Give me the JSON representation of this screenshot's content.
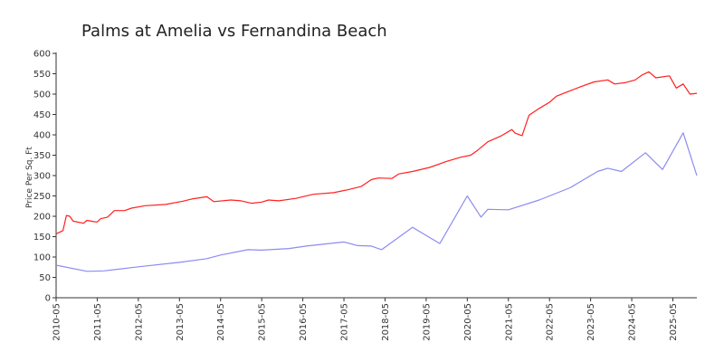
{
  "chart_data": {
    "type": "line",
    "title": "Palms at Amelia vs Fernandina Beach",
    "ylabel": "Price Per Sq. Ft",
    "xlabel": "",
    "ylim": [
      0,
      600
    ],
    "yticks": [
      0,
      50,
      100,
      150,
      200,
      250,
      300,
      350,
      400,
      450,
      500,
      550,
      600
    ],
    "xlim": [
      "2010-05",
      "2025-12"
    ],
    "xticks": [
      "2010-05",
      "2011-05",
      "2012-05",
      "2013-05",
      "2014-05",
      "2015-05",
      "2016-05",
      "2017-05",
      "2018-05",
      "2019-05",
      "2020-05",
      "2021-05",
      "2022-05",
      "2023-05",
      "2024-05",
      "2025-05"
    ],
    "grid": false,
    "legend": "none",
    "series": [
      {
        "color": "#ff2020",
        "points": [
          [
            "2010-05",
            157
          ],
          [
            "2010-07",
            165
          ],
          [
            "2010-08",
            202
          ],
          [
            "2010-09",
            200
          ],
          [
            "2010-10",
            188
          ],
          [
            "2011-01",
            183
          ],
          [
            "2011-02",
            190
          ],
          [
            "2011-04",
            187
          ],
          [
            "2011-05",
            186
          ],
          [
            "2011-06",
            194
          ],
          [
            "2011-08",
            198
          ],
          [
            "2011-10",
            214
          ],
          [
            "2012-01",
            214
          ],
          [
            "2012-03",
            220
          ],
          [
            "2012-07",
            226
          ],
          [
            "2013-01",
            229
          ],
          [
            "2013-06",
            237
          ],
          [
            "2013-09",
            243
          ],
          [
            "2014-01",
            248
          ],
          [
            "2014-03",
            236
          ],
          [
            "2014-08",
            240
          ],
          [
            "2014-11",
            238
          ],
          [
            "2015-02",
            232
          ],
          [
            "2015-05",
            235
          ],
          [
            "2015-07",
            240
          ],
          [
            "2015-10",
            238
          ],
          [
            "2016-03",
            244
          ],
          [
            "2016-08",
            254
          ],
          [
            "2017-02",
            258
          ],
          [
            "2017-06",
            265
          ],
          [
            "2017-10",
            273
          ],
          [
            "2018-01",
            290
          ],
          [
            "2018-03",
            294
          ],
          [
            "2018-07",
            293
          ],
          [
            "2018-09",
            304
          ],
          [
            "2019-01",
            310
          ],
          [
            "2019-06",
            320
          ],
          [
            "2019-11",
            335
          ],
          [
            "2020-03",
            345
          ],
          [
            "2020-06",
            350
          ],
          [
            "2020-08",
            362
          ],
          [
            "2020-11",
            383
          ],
          [
            "2021-03",
            398
          ],
          [
            "2021-06",
            413
          ],
          [
            "2021-07",
            404
          ],
          [
            "2021-09",
            398
          ],
          [
            "2021-11",
            448
          ],
          [
            "2022-02",
            465
          ],
          [
            "2022-05",
            480
          ],
          [
            "2022-07",
            495
          ],
          [
            "2022-10",
            505
          ],
          [
            "2023-02",
            518
          ],
          [
            "2023-06",
            530
          ],
          [
            "2023-10",
            535
          ],
          [
            "2023-12",
            525
          ],
          [
            "2024-03",
            528
          ],
          [
            "2024-06",
            535
          ],
          [
            "2024-08",
            547
          ],
          [
            "2024-10",
            555
          ],
          [
            "2024-12",
            540
          ],
          [
            "2025-04",
            545
          ],
          [
            "2025-06",
            515
          ],
          [
            "2025-08",
            525
          ],
          [
            "2025-10",
            500
          ],
          [
            "2025-12",
            502
          ]
        ]
      },
      {
        "color": "#8c8cf0",
        "points": [
          [
            "2010-05",
            80
          ],
          [
            "2011-02",
            65
          ],
          [
            "2011-07",
            66
          ],
          [
            "2012-05",
            76
          ],
          [
            "2013-05",
            87
          ],
          [
            "2014-01",
            96
          ],
          [
            "2014-05",
            105
          ],
          [
            "2015-01",
            118
          ],
          [
            "2015-05",
            117
          ],
          [
            "2016-01",
            121
          ],
          [
            "2016-06",
            127
          ],
          [
            "2017-05",
            137
          ],
          [
            "2017-09",
            128
          ],
          [
            "2018-01",
            127
          ],
          [
            "2018-04",
            118
          ],
          [
            "2019-01",
            173
          ],
          [
            "2019-09",
            133
          ],
          [
            "2020-05",
            250
          ],
          [
            "2020-09",
            198
          ],
          [
            "2020-11",
            217
          ],
          [
            "2021-05",
            216
          ],
          [
            "2022-02",
            240
          ],
          [
            "2022-11",
            270
          ],
          [
            "2023-07",
            310
          ],
          [
            "2023-10",
            318
          ],
          [
            "2024-02",
            310
          ],
          [
            "2024-09",
            356
          ],
          [
            "2025-02",
            315
          ],
          [
            "2025-08",
            405
          ],
          [
            "2025-12",
            300
          ]
        ]
      }
    ]
  }
}
